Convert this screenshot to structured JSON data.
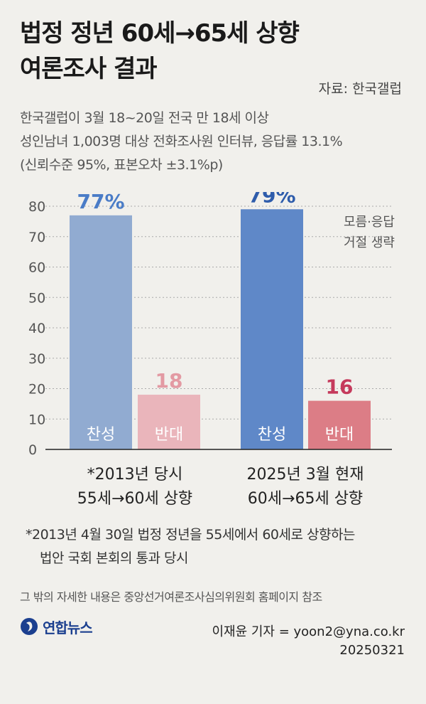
{
  "title": [
    "법정 정년 60세→65세 상향",
    "여론조사 결과"
  ],
  "source": "자료: 한국갤럽",
  "survey_info": [
    "한국갤럽이 3월 18~20일 전국 만 18세 이상",
    "성인남녀 1,003명 대상 전화조사원 인터뷰, 응답률 13.1%",
    "(신뢰수준 95%, 표본오차 ±3.1%p)"
  ],
  "chart_data": {
    "type": "bar",
    "y_ticks": [
      "0",
      "10",
      "20",
      "30",
      "40",
      "50",
      "60",
      "70",
      "80"
    ],
    "ylim": [
      0,
      80
    ],
    "annotation": [
      "모름·응답",
      "거절 생략"
    ],
    "groups": [
      {
        "label": [
          "*2013년 당시",
          "55세→60세 상향"
        ],
        "bars": [
          {
            "name": "찬성",
            "value": 77,
            "value_label": "77%",
            "color": "#91abd1",
            "label_color": "#4a7cc7"
          },
          {
            "name": "반대",
            "value": 18,
            "value_label": "18",
            "color": "#eab5bb",
            "label_color": "#e39aa3"
          }
        ]
      },
      {
        "label": [
          "2025년 3월 현재",
          "60세→65세 상향"
        ],
        "bars": [
          {
            "name": "찬성",
            "value": 79,
            "value_label": "79%",
            "color": "#5f88c8",
            "label_color": "#2e5cab"
          },
          {
            "name": "반대",
            "value": 16,
            "value_label": "16",
            "color": "#dc7d86",
            "label_color": "#c53a5c"
          }
        ]
      }
    ]
  },
  "footnote": [
    "*2013년 4월 30일 법정 정년을 55세에서 60세로 상향하는",
    "법안 국회 본회의 통과 당시"
  ],
  "reference": "그 밖의 자세한 내용은 중앙선거여론조사심의위원회 홈페이지 참조",
  "logo_text": "연합뉴스",
  "credit": [
    "이재윤 기자 = yoon2@yna.co.kr",
    "20250321"
  ]
}
